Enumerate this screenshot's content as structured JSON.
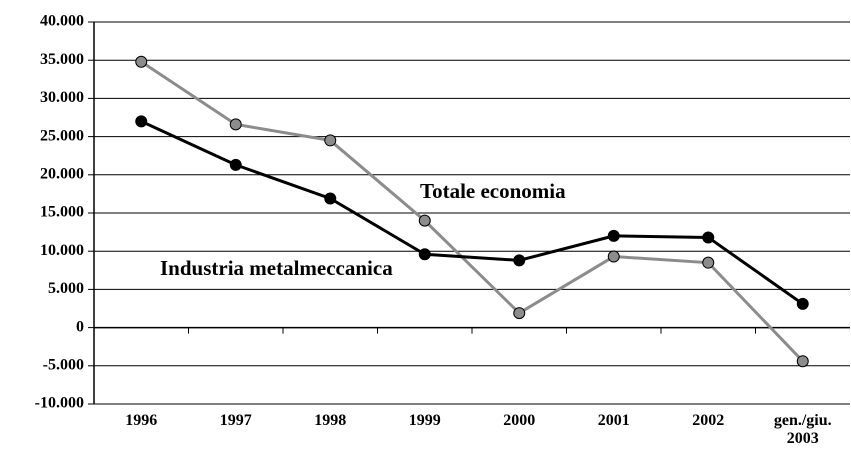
{
  "chart_data": {
    "type": "line",
    "categories": [
      "1996",
      "1997",
      "1998",
      "1999",
      "2000",
      "2001",
      "2002",
      "gen./giu. 2003"
    ],
    "series": [
      {
        "name": "Totale economia",
        "color": "#8c8c8c",
        "values": [
          34800,
          26600,
          24500,
          14000,
          1900,
          9300,
          8500,
          -4400
        ]
      },
      {
        "name": "Industria metalmeccanica",
        "color": "#000000",
        "values": [
          27000,
          21300,
          16900,
          9600,
          8800,
          12000,
          11800,
          3100
        ]
      }
    ],
    "ylim": [
      -10000,
      40000
    ],
    "yticks": [
      {
        "value": -10000,
        "label": "-10.000"
      },
      {
        "value": -5000,
        "label": "-5.000"
      },
      0,
      {
        "value": 5000,
        "label": "5.000"
      },
      {
        "value": 10000,
        "label": "10.000"
      },
      {
        "value": 15000,
        "label": "15.000"
      },
      {
        "value": 20000,
        "label": "20.000"
      },
      {
        "value": 25000,
        "label": "25.000"
      },
      {
        "value": 30000,
        "label": "30.000"
      },
      {
        "value": 35000,
        "label": "35.000"
      },
      {
        "value": 40000,
        "label": "40.000"
      }
    ],
    "grid": true
  }
}
